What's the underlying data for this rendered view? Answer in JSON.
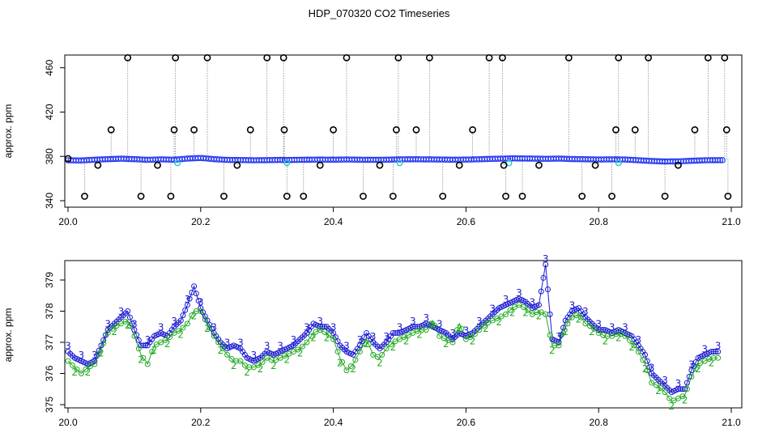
{
  "chart_data": [
    {
      "type": "scatter",
      "title": "HDP_070320  CO2 Timeseries",
      "xlabel": "",
      "ylabel": "approx. ppm",
      "xlim": [
        20.0,
        21.0
      ],
      "ylim": [
        340,
        470
      ],
      "x_ticks": [
        20.0,
        20.2,
        20.4,
        20.6,
        20.8,
        21.0
      ],
      "x_tick_labels": [
        "20.0",
        "20.2",
        "20.4",
        "20.6",
        "20.8",
        "21.0"
      ],
      "y_ticks": [
        340,
        380,
        420,
        460
      ],
      "y_tick_labels": [
        "340",
        "380",
        "420",
        "460"
      ],
      "colors": {
        "baseline": "#2233ee",
        "outliers": "#000000",
        "spikes": "#888888",
        "cyan": "#22cccc"
      },
      "baseline": {
        "x": [
          20.0,
          20.02,
          20.04,
          20.06,
          20.08,
          20.1,
          20.12,
          20.14,
          20.16,
          20.18,
          20.2,
          20.22,
          20.24,
          20.26,
          20.28,
          20.3,
          20.32,
          20.33,
          20.36,
          20.38,
          20.4,
          20.42,
          20.44,
          20.46,
          20.48,
          20.5,
          20.52,
          20.54,
          20.56,
          20.58,
          20.6,
          20.62,
          20.64,
          20.66,
          20.67,
          20.7,
          20.72,
          20.74,
          20.76,
          20.78,
          20.8,
          20.82,
          20.84,
          20.86,
          20.88,
          20.9,
          20.92,
          20.94,
          20.96,
          20.98,
          20.99
        ],
        "y": [
          376.5,
          376.3,
          377,
          377.5,
          377.9,
          377.5,
          376.9,
          377.3,
          377,
          378,
          378.6,
          377.5,
          376.8,
          376.7,
          376.5,
          376.6,
          376.8,
          376.7,
          377,
          377.1,
          377,
          377.2,
          377,
          376.9,
          377,
          377.3,
          377.4,
          377.3,
          377.2,
          377,
          377.1,
          377.4,
          377.8,
          378,
          378.2,
          378,
          377.8,
          378,
          377.6,
          377.4,
          377.2,
          377.3,
          377.2,
          376.5,
          375.8,
          375.4,
          375.5,
          376,
          376.5,
          376.6,
          376.6
        ]
      },
      "outliers": {
        "x": [
          20.0,
          20.025,
          20.045,
          20.065,
          20.09,
          20.11,
          20.135,
          20.155,
          20.16,
          20.162,
          20.19,
          20.21,
          20.235,
          20.255,
          20.275,
          20.3,
          20.325,
          20.326,
          20.33,
          20.355,
          20.38,
          20.4,
          20.42,
          20.445,
          20.47,
          20.49,
          20.495,
          20.498,
          20.525,
          20.545,
          20.565,
          20.59,
          20.61,
          20.635,
          20.655,
          20.657,
          20.66,
          20.685,
          20.71,
          20.755,
          20.775,
          20.795,
          20.82,
          20.826,
          20.83,
          20.855,
          20.875,
          20.9,
          20.92,
          20.945,
          20.965,
          20.99,
          20.993,
          20.995
        ],
        "y": [
          378,
          344,
          372,
          404,
          469,
          344,
          372,
          344,
          404,
          469,
          404,
          469,
          344,
          372,
          404,
          469,
          469,
          404,
          344,
          344,
          372,
          404,
          469,
          344,
          372,
          344,
          404,
          469,
          404,
          469,
          344,
          372,
          404,
          469,
          469,
          372,
          344,
          344,
          372,
          469,
          344,
          372,
          344,
          404,
          469,
          404,
          469,
          344,
          372,
          404,
          469,
          469,
          404,
          344
        ]
      }
    },
    {
      "type": "line",
      "title": "",
      "xlabel": "",
      "ylabel": "approx. ppm",
      "xlim": [
        20.0,
        21.0
      ],
      "ylim": [
        375,
        379.5
      ],
      "x_ticks": [
        20.0,
        20.2,
        20.4,
        20.6,
        20.8,
        21.0
      ],
      "x_tick_labels": [
        "20.0",
        "20.2",
        "20.4",
        "20.6",
        "20.8",
        "21.0"
      ],
      "y_ticks": [
        375,
        376,
        377,
        378,
        379
      ],
      "y_tick_labels": [
        "375",
        "376",
        "377",
        "378",
        "379"
      ],
      "colors": {
        "series2": "#22aa22",
        "series3": "#1a1ad0"
      },
      "series": [
        {
          "name": "2",
          "marker": "2",
          "x": [
            20.0,
            20.01,
            20.02,
            20.03,
            20.04,
            20.05,
            20.06,
            20.07,
            20.08,
            20.09,
            20.1,
            20.11,
            20.12,
            20.13,
            20.14,
            20.15,
            20.16,
            20.17,
            20.18,
            20.19,
            20.2,
            20.21,
            20.22,
            20.23,
            20.24,
            20.25,
            20.26,
            20.27,
            20.28,
            20.29,
            20.3,
            20.31,
            20.32,
            20.33,
            20.34,
            20.35,
            20.36,
            20.37,
            20.38,
            20.39,
            20.4,
            20.41,
            20.42,
            20.43,
            20.44,
            20.45,
            20.46,
            20.47,
            20.48,
            20.49,
            20.5,
            20.51,
            20.52,
            20.53,
            20.54,
            20.55,
            20.56,
            20.57,
            20.58,
            20.59,
            20.6,
            20.61,
            20.62,
            20.63,
            20.64,
            20.65,
            20.66,
            20.67,
            20.68,
            20.69,
            20.7,
            20.71,
            20.72,
            20.73,
            20.74,
            20.75,
            20.76,
            20.77,
            20.78,
            20.79,
            20.8,
            20.81,
            20.82,
            20.83,
            20.84,
            20.85,
            20.86,
            20.87,
            20.88,
            20.89,
            20.9,
            20.91,
            20.92,
            20.93,
            20.94,
            20.95,
            20.96,
            20.97,
            20.98
          ],
          "y": [
            376.4,
            376.2,
            376,
            376.2,
            376.3,
            376.8,
            377.3,
            377.5,
            377.6,
            377.7,
            377.2,
            376.6,
            376.3,
            376.9,
            377,
            377.1,
            377.3,
            377.4,
            377.6,
            378,
            378,
            377.6,
            377.2,
            376.9,
            376.6,
            376.4,
            376.4,
            376.2,
            376.2,
            376.3,
            376.5,
            376.4,
            376.5,
            376.6,
            376.7,
            376.8,
            377,
            377.3,
            377.4,
            377.3,
            377.1,
            376.5,
            376.1,
            376.3,
            376.7,
            377.1,
            376.6,
            376.5,
            376.8,
            377,
            377.1,
            377.2,
            377.3,
            377.4,
            377.4,
            377.7,
            377.2,
            377.1,
            377,
            377.6,
            377.1,
            377.2,
            377.4,
            377.6,
            377.7,
            377.8,
            377.9,
            378.1,
            378.2,
            378.1,
            377.9,
            378,
            377.9,
            376.9,
            376.9,
            377.5,
            377.8,
            377.9,
            377.6,
            377.5,
            377.3,
            377.2,
            377.2,
            377.3,
            377.2,
            377,
            376.7,
            376.3,
            375.7,
            375.6,
            375.4,
            375.1,
            375.2,
            375.3,
            375.9,
            376.3,
            376.4,
            376.5,
            376.5
          ]
        },
        {
          "name": "3",
          "marker": "3",
          "x": [
            20.0,
            20.01,
            20.02,
            20.03,
            20.04,
            20.05,
            20.06,
            20.07,
            20.08,
            20.09,
            20.1,
            20.11,
            20.12,
            20.13,
            20.14,
            20.15,
            20.16,
            20.17,
            20.18,
            20.19,
            20.2,
            20.21,
            20.22,
            20.23,
            20.24,
            20.25,
            20.26,
            20.27,
            20.28,
            20.29,
            20.3,
            20.31,
            20.32,
            20.33,
            20.34,
            20.35,
            20.36,
            20.37,
            20.38,
            20.39,
            20.4,
            20.41,
            20.42,
            20.43,
            20.44,
            20.45,
            20.46,
            20.47,
            20.48,
            20.49,
            20.5,
            20.51,
            20.52,
            20.53,
            20.54,
            20.55,
            20.56,
            20.57,
            20.58,
            20.59,
            20.6,
            20.61,
            20.62,
            20.63,
            20.64,
            20.65,
            20.66,
            20.67,
            20.68,
            20.69,
            20.7,
            20.71,
            20.72,
            20.73,
            20.74,
            20.75,
            20.76,
            20.77,
            20.78,
            20.79,
            20.8,
            20.81,
            20.82,
            20.83,
            20.84,
            20.85,
            20.86,
            20.87,
            20.88,
            20.89,
            20.9,
            20.91,
            20.92,
            20.93,
            20.94,
            20.95,
            20.96,
            20.97,
            20.98
          ],
          "y": [
            376.7,
            376.5,
            376.4,
            376.3,
            376.4,
            376.9,
            377.4,
            377.6,
            377.8,
            378,
            377.4,
            376.9,
            376.9,
            377.2,
            377.3,
            377.2,
            377.5,
            377.7,
            378.2,
            378.8,
            378.1,
            377.7,
            377.3,
            377,
            376.8,
            376.9,
            376.8,
            376.5,
            376.4,
            376.5,
            376.7,
            376.6,
            376.7,
            376.8,
            376.9,
            377.1,
            377.3,
            377.6,
            377.5,
            377.5,
            377.3,
            376.9,
            376.7,
            376.6,
            376.9,
            377.3,
            377,
            376.8,
            377,
            377.3,
            377.3,
            377.4,
            377.5,
            377.5,
            377.6,
            377.5,
            377.4,
            377.3,
            377.1,
            377.3,
            377.2,
            377.3,
            377.5,
            377.7,
            377.9,
            378.1,
            378.2,
            378.3,
            378.4,
            378.3,
            378.1,
            378.2,
            379.5,
            377.1,
            377,
            377.7,
            378,
            378.1,
            377.8,
            377.6,
            377.4,
            377.4,
            377.3,
            377.4,
            377.3,
            377.2,
            376.9,
            376.6,
            376,
            375.8,
            375.6,
            375.4,
            375.5,
            375.5,
            376.1,
            376.5,
            376.6,
            376.7,
            376.7
          ]
        }
      ]
    }
  ]
}
